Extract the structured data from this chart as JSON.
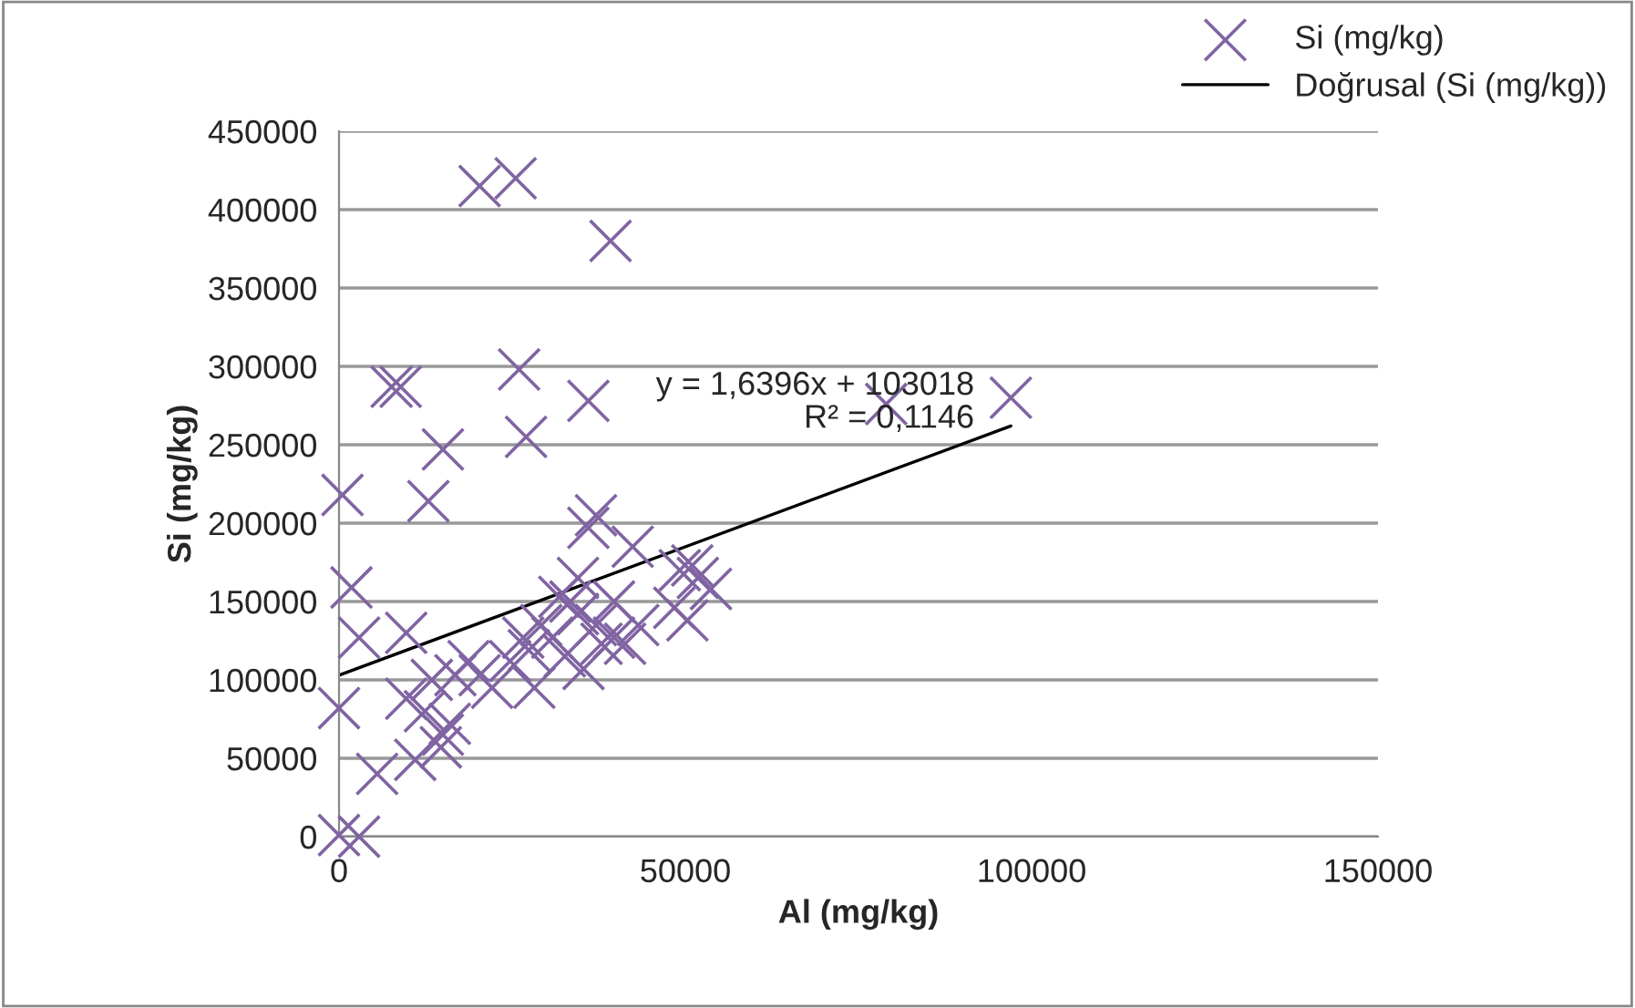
{
  "chart_data": {
    "type": "scatter",
    "xlabel": "Al (mg/kg)",
    "ylabel": "Si (mg/kg)",
    "series": [
      {
        "name": "Si (mg/kg)",
        "color": "#8064a2",
        "marker": "cross",
        "x": [
          20300,
          25500,
          39200,
          8900,
          7600,
          26000,
          36000,
          15000,
          27000,
          79000,
          97000,
          500,
          12900,
          1800,
          2900,
          9700,
          0,
          0,
          2900,
          5500,
          11000,
          15000,
          14700,
          13400,
          16800,
          20300,
          22100,
          24700,
          28200,
          27400,
          30800,
          32600,
          35300,
          34500,
          37100,
          39700,
          37900,
          36000,
          37100,
          42400,
          34500,
          39700,
          49200,
          51800,
          53700,
          48400,
          50300,
          51000,
          9700,
          12400,
          16000,
          18700,
          41300,
          43200,
          29200,
          26600,
          31800,
          33400
        ],
        "values": [
          415000,
          420000,
          380000,
          287000,
          287000,
          298000,
          278000,
          247000,
          255000,
          276000,
          280000,
          218000,
          214000,
          159000,
          127000,
          130000,
          82000,
          1000,
          0,
          40000,
          49000,
          65000,
          57000,
          100000,
          103000,
          103000,
          95000,
          112000,
          95000,
          119000,
          127000,
          115000,
          107000,
          142000,
          135000,
          127000,
          123000,
          197000,
          205000,
          185000,
          165000,
          150000,
          170000,
          165000,
          158000,
          146000,
          138000,
          173000,
          88000,
          80000,
          72000,
          112000,
          123000,
          135000,
          135000,
          127000,
          153000,
          150000
        ]
      },
      {
        "name": "Doğrusal (Si (mg/kg))",
        "type": "line",
        "color": "#000000",
        "line_style": "solid",
        "x": [
          0,
          97000
        ],
        "values": [
          103000,
          262000
        ]
      }
    ],
    "annotations": [
      "y = 1,6396x + 103018\nR² = 0,1146"
    ],
    "xlim": [
      0,
      150000
    ],
    "xticks": [
      0,
      50000,
      100000,
      150000
    ],
    "ylim": [
      0,
      450000
    ],
    "yticks": [
      0,
      50000,
      100000,
      150000,
      200000,
      250000,
      300000,
      350000,
      400000,
      450000
    ],
    "grid": "y",
    "legend": "top right"
  }
}
